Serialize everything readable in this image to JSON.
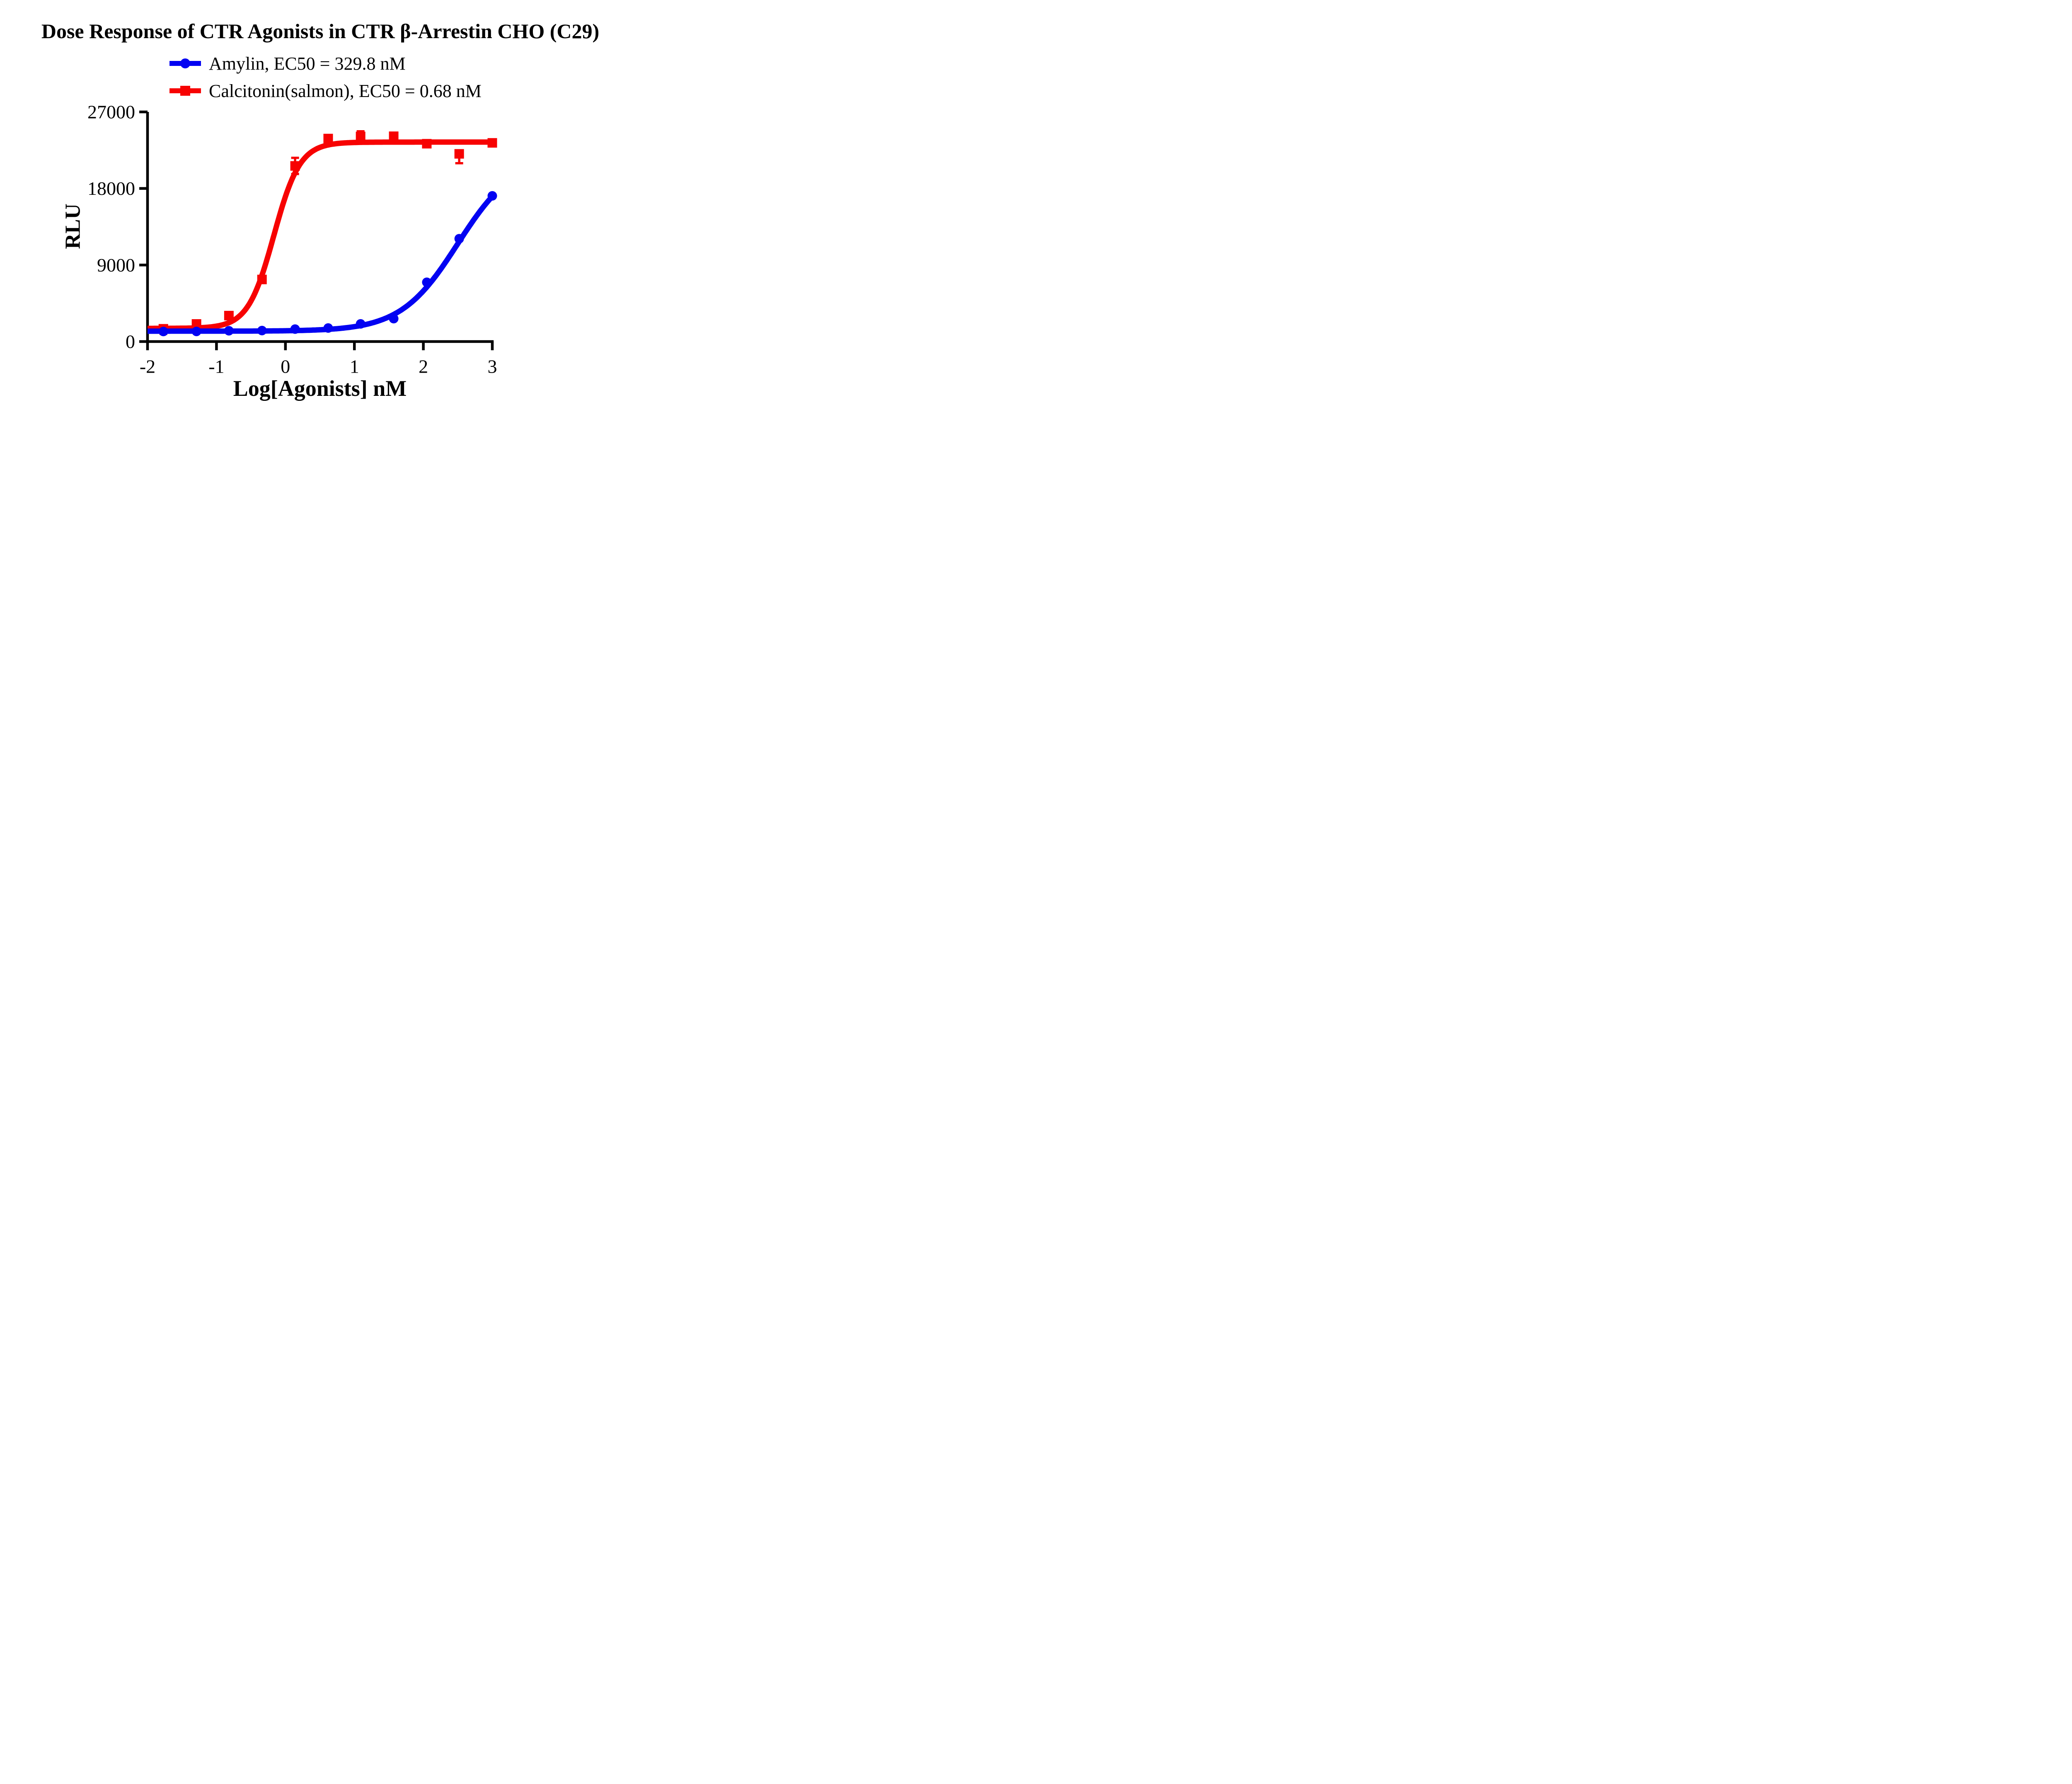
{
  "title": "Dose Response of CTR Agonists in CTR β-Arrestin CHO (C29)",
  "chart_data": {
    "type": "scatter",
    "title": "Dose Response of CTR Agonists in CTR β-Arrestin CHO (C29)",
    "xlabel": "Log[Agonists] nM",
    "ylabel": "RLU",
    "xlim": [
      -2,
      3
    ],
    "ylim": [
      0,
      27000
    ],
    "x_ticks": [
      -2,
      -1,
      0,
      1,
      2,
      3
    ],
    "y_ticks": [
      0,
      9000,
      18000,
      27000
    ],
    "grid": false,
    "legend_position": "top-center",
    "x": [
      -1.77,
      -1.29,
      -0.82,
      -0.34,
      0.14,
      0.62,
      1.09,
      1.57,
      2.05,
      2.52,
      3.0
    ],
    "series": [
      {
        "name": "Amylin, EC50 = 329.8 nM",
        "agonist": "Amylin",
        "ec50_nM": 329.8,
        "color": "#0202f2",
        "marker": "circle",
        "values": [
          1180,
          1190,
          1270,
          1290,
          1460,
          1590,
          2080,
          2690,
          6970,
          12090,
          17130
        ],
        "err_up": [
          0,
          0,
          0,
          0,
          0,
          0,
          0,
          0,
          0,
          0,
          0
        ],
        "err_down": [
          0,
          0,
          0,
          0,
          0,
          0,
          0,
          0,
          0,
          0,
          0
        ],
        "fit": {
          "model": "4PL",
          "bottom": 1220,
          "top": 21800,
          "logec50": 2.5,
          "hill": 1.05
        }
      },
      {
        "name": "Calcitonin(salmon), EC50 = 0.68 nM",
        "agonist": "Calcitonin(salmon)",
        "ec50_nM": 0.68,
        "color": "#f70202",
        "marker": "square",
        "values": [
          1500,
          2070,
          3050,
          7300,
          20650,
          23870,
          24120,
          24140,
          23260,
          22070,
          23360
        ],
        "err_up": [
          0,
          0,
          0,
          0,
          950,
          0,
          600,
          0,
          0,
          0,
          0
        ],
        "err_down": [
          590,
          0,
          0,
          0,
          950,
          0,
          0,
          0,
          0,
          1100,
          0
        ],
        "fit": {
          "model": "4PL",
          "bottom": 1550,
          "top": 23450,
          "logec50": -0.167,
          "hill": 2.3
        }
      }
    ]
  }
}
